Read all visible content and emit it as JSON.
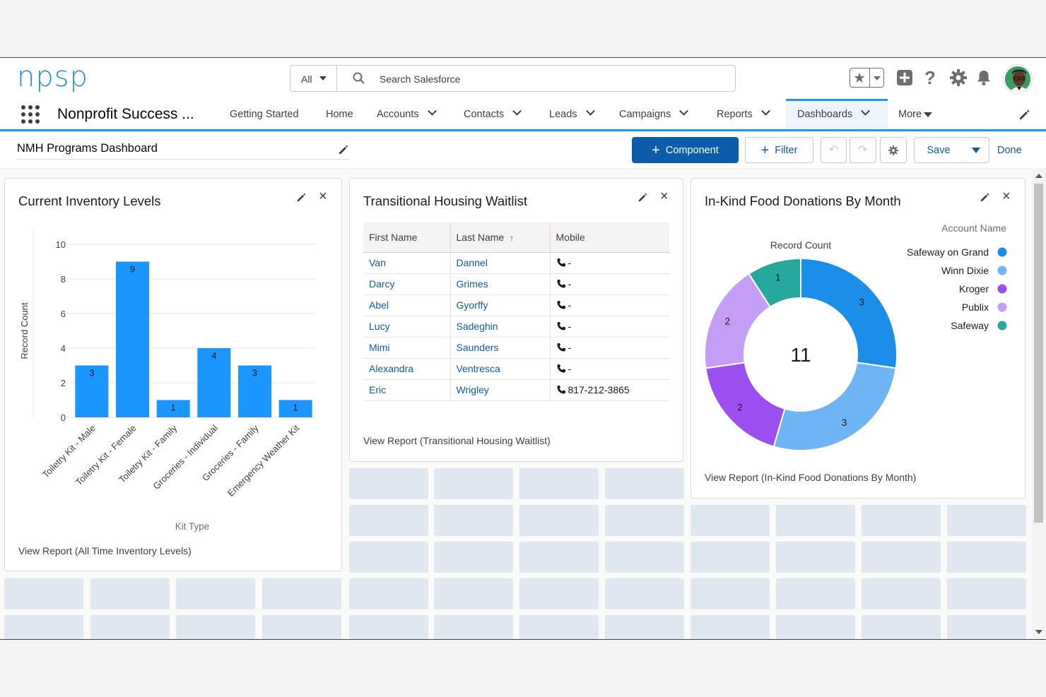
{
  "header": {
    "logo": "npsp",
    "search_scope": "All",
    "search_placeholder": "Search Salesforce"
  },
  "nav": {
    "app_name": "Nonprofit Success ...",
    "items": [
      {
        "label": "Getting Started",
        "dropdown": false
      },
      {
        "label": "Home",
        "dropdown": false
      },
      {
        "label": "Accounts",
        "dropdown": true
      },
      {
        "label": "Contacts",
        "dropdown": true
      },
      {
        "label": "Leads",
        "dropdown": true
      },
      {
        "label": "Campaigns",
        "dropdown": true
      },
      {
        "label": "Reports",
        "dropdown": true
      },
      {
        "label": "Dashboards",
        "dropdown": true,
        "active": true
      }
    ],
    "more_label": "More"
  },
  "toolbar": {
    "dashboard_name": "NMH Programs Dashboard",
    "component_label": "Component",
    "filter_label": "Filter",
    "save_label": "Save",
    "done_label": "Done"
  },
  "inventory": {
    "title": "Current Inventory Levels",
    "view_report": "View Report (All Time Inventory Levels)",
    "chart_data": {
      "type": "bar",
      "title": "Current Inventory Levels",
      "xlabel": "Kit Type",
      "ylabel": "Record Count",
      "ylim": [
        0,
        10
      ],
      "yticks": [
        "0",
        "2",
        "4",
        "6",
        "8",
        "10"
      ],
      "categories": [
        "Toiletry Kit - Male",
        "Toiletry Kit - Female",
        "Toiletry Kit - Family",
        "Groceries - Individual",
        "Groceries - Family",
        "Emergency Weather Kit"
      ],
      "values": [
        3,
        9,
        1,
        4,
        3,
        1
      ],
      "color": "#1b96ff",
      "grid": true
    }
  },
  "waitlist": {
    "title": "Transitional Housing Waitlist",
    "columns": [
      "First Name",
      "Last Name",
      "Mobile"
    ],
    "sort_indicator": "↑",
    "rows": [
      {
        "first": "Van",
        "last": "Dannel",
        "mobile": "-"
      },
      {
        "first": "Darcy",
        "last": "Grimes",
        "mobile": "-"
      },
      {
        "first": "Abel",
        "last": "Gyorffy",
        "mobile": "-"
      },
      {
        "first": "Lucy",
        "last": "Sadeghin",
        "mobile": "-"
      },
      {
        "first": "Mimi",
        "last": "Saunders",
        "mobile": "-"
      },
      {
        "first": "Alexandra",
        "last": "Ventresca",
        "mobile": "-"
      },
      {
        "first": "Eric",
        "last": "Wrigley",
        "mobile": "817-212-3865"
      }
    ],
    "view_report": "View Report (Transitional Housing Waitlist)"
  },
  "donations": {
    "title": "In-Kind Food Donations By Month",
    "view_report": "View Report (In-Kind Food Donations By Month)",
    "chart_data": {
      "type": "pie",
      "subtitle": "Record Count",
      "legend_title": "Account Name",
      "legend_position": "top-right",
      "total": "11",
      "slices": [
        {
          "name": "Safeway on Grand",
          "value": 3,
          "color": "#1b8ee8"
        },
        {
          "name": "Winn Dixie",
          "value": 3,
          "color": "#6fb4f3"
        },
        {
          "name": "Kroger",
          "value": 2,
          "color": "#9b4ff0"
        },
        {
          "name": "Publix",
          "value": 2,
          "color": "#c49ef5"
        },
        {
          "name": "Safeway",
          "value": 1,
          "color": "#27a89d"
        }
      ]
    }
  }
}
